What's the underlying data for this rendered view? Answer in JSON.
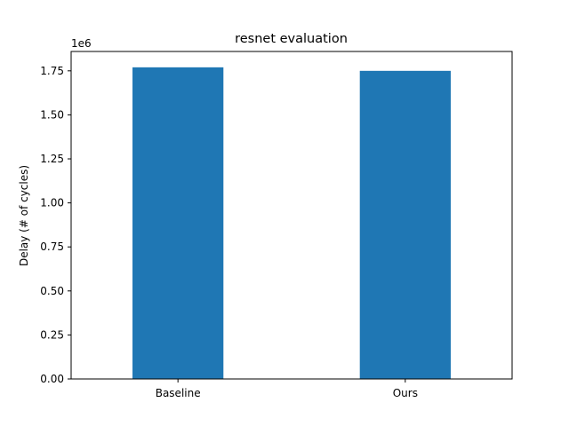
{
  "chart_data": {
    "type": "bar",
    "title": "resnet evaluation",
    "xlabel": "",
    "ylabel": "Delay (# of cycles)",
    "y_offset_label": "1e6",
    "categories": [
      "Baseline",
      "Ours"
    ],
    "values": [
      1770000,
      1750000
    ],
    "ylim": [
      0,
      1860000
    ],
    "yticks": [
      0,
      250000,
      500000,
      750000,
      1000000,
      1250000,
      1500000,
      1750000
    ],
    "ytick_labels": [
      "0.00",
      "0.25",
      "0.50",
      "0.75",
      "1.00",
      "1.25",
      "1.50",
      "1.75"
    ],
    "bar_color": "#1f77b4",
    "grid": false,
    "legend": "none"
  }
}
